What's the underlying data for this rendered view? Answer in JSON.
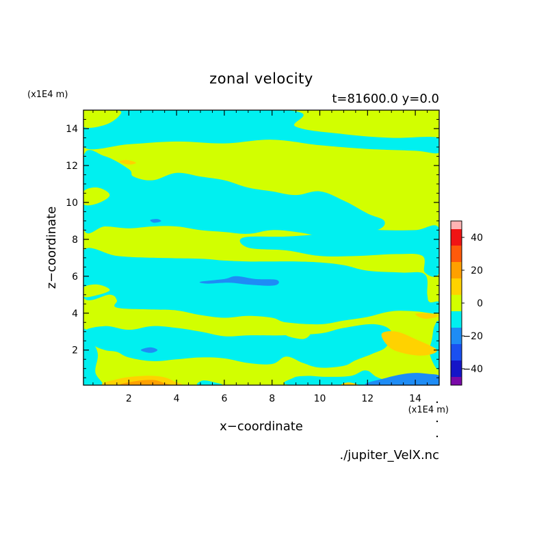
{
  "chart_data": {
    "type": "heatmap",
    "title": "zonal velocity",
    "subtitle": "t=81600.0 y=0.0",
    "xlabel": "x−coordinate",
    "ylabel": "z−coordinate",
    "x_unit": "(x1E4 m)",
    "y_unit": "(x1E4 m)",
    "footer": "./jupiter_VelX.nc",
    "xlim": [
      0.1,
      15
    ],
    "ylim": [
      0.1,
      15
    ],
    "x_ticks": [
      2,
      4,
      6,
      8,
      10,
      12,
      14
    ],
    "y_ticks": [
      2,
      4,
      6,
      8,
      10,
      12,
      14
    ],
    "x_tick_labels": [
      "2",
      "4",
      "6",
      "8",
      "10",
      "12",
      "14"
    ],
    "y_tick_labels": [
      "2",
      "4",
      "6",
      "8",
      "10",
      "12",
      "14"
    ],
    "grid": false,
    "colorbar": {
      "placement": "right",
      "levels": [
        -50,
        -40,
        -30,
        -20,
        -10,
        0,
        10,
        20,
        30,
        40,
        50
      ],
      "colors": [
        "#7a0aa8",
        "#1515c8",
        "#1a50f0",
        "#1e8cf5",
        "#00f0f0",
        "#d2ff00",
        "#ffd200",
        "#ffa000",
        "#ff5a0a",
        "#f01414",
        "#ffb4b4"
      ],
      "tick_values": [
        -40,
        -20,
        0,
        20,
        40
      ],
      "tick_labels": [
        "−40",
        "−20",
        "0",
        "20",
        "40"
      ]
    },
    "background_level": 0,
    "regions": [
      {
        "level": -10,
        "points": [
          [
            0.1,
            13.0
          ],
          [
            2,
            13.15
          ],
          [
            4,
            13.3
          ],
          [
            6,
            13.2
          ],
          [
            8,
            13.4
          ],
          [
            10,
            13.1
          ],
          [
            12,
            12.9
          ],
          [
            14,
            12.8
          ],
          [
            15,
            12.7
          ],
          [
            15,
            13.5
          ],
          [
            13,
            13.5
          ],
          [
            11,
            13.7
          ],
          [
            9,
            14.1
          ],
          [
            8.6,
            15
          ],
          [
            0.1,
            15
          ]
        ]
      },
      {
        "level": 0,
        "points": [
          [
            0.1,
            15
          ],
          [
            0.1,
            14.1
          ],
          [
            1,
            14.2
          ],
          [
            1.6,
            14.7
          ],
          [
            1.5,
            15
          ]
        ]
      },
      {
        "level": -10,
        "points": [
          [
            0.1,
            12.5
          ],
          [
            1,
            12.5
          ],
          [
            2,
            11.8
          ],
          [
            2.2,
            11.4
          ],
          [
            3,
            11.2
          ],
          [
            4,
            11.6
          ],
          [
            5,
            11.4
          ],
          [
            6,
            11.2
          ],
          [
            7,
            10.8
          ],
          [
            8,
            10.6
          ],
          [
            9,
            10.4
          ],
          [
            10,
            10.6
          ],
          [
            11,
            10.1
          ],
          [
            12,
            9.4
          ],
          [
            12.7,
            9.0
          ],
          [
            12.4,
            8.5
          ],
          [
            11,
            8.2
          ],
          [
            10,
            8.2
          ],
          [
            9,
            8.4
          ],
          [
            8,
            8.5
          ],
          [
            7,
            8.3
          ],
          [
            6,
            8.4
          ],
          [
            5,
            8.5
          ],
          [
            4,
            8.7
          ],
          [
            3,
            8.7
          ],
          [
            2,
            8.6
          ],
          [
            1,
            8.7
          ],
          [
            0.1,
            8.6
          ]
        ]
      },
      {
        "level": 0,
        "points": [
          [
            1.6,
            7.6
          ],
          [
            3,
            7.9
          ],
          [
            5,
            7.9
          ],
          [
            6.4,
            7.6
          ],
          [
            5.2,
            7.25
          ],
          [
            3,
            7.15
          ],
          [
            1.6,
            7.3
          ]
        ]
      },
      {
        "level": 0,
        "points": [
          [
            0.1,
            10.6
          ],
          [
            0.7,
            10.8
          ],
          [
            1.2,
            10.4
          ],
          [
            0.7,
            9.95
          ],
          [
            0.1,
            9.9
          ]
        ]
      },
      {
        "level": -10,
        "points": [
          [
            11.2,
            8.6
          ],
          [
            12.6,
            8.5
          ],
          [
            14,
            8.5
          ],
          [
            15,
            8.6
          ],
          [
            15,
            6.2
          ],
          [
            14.4,
            6.2
          ],
          [
            14.3,
            7.1
          ],
          [
            13.2,
            7.2
          ],
          [
            11.6,
            7.1
          ],
          [
            10,
            7.1
          ],
          [
            8.6,
            7.4
          ],
          [
            7,
            7.55
          ],
          [
            6.8,
            8.1
          ],
          [
            8.6,
            8.15
          ],
          [
            10,
            8.3
          ]
        ]
      },
      {
        "level": -10,
        "points": [
          [
            0.1,
            7.4
          ],
          [
            1.5,
            7.1
          ],
          [
            3,
            7.0
          ],
          [
            5,
            6.95
          ],
          [
            6,
            6.85
          ],
          [
            7,
            6.8
          ],
          [
            8,
            6.8
          ],
          [
            9,
            6.8
          ],
          [
            10,
            6.75
          ],
          [
            11,
            6.6
          ],
          [
            12,
            6.3
          ],
          [
            13.4,
            6.2
          ],
          [
            14.4,
            6.1
          ],
          [
            14.5,
            5.0
          ],
          [
            14.6,
            4.6
          ],
          [
            15,
            4.6
          ],
          [
            15,
            4.0
          ],
          [
            14,
            4.1
          ],
          [
            13,
            4.1
          ],
          [
            12,
            3.8
          ],
          [
            11,
            3.6
          ],
          [
            10,
            3.4
          ],
          [
            8.6,
            3.5
          ],
          [
            8,
            3.75
          ],
          [
            7,
            3.85
          ],
          [
            6,
            3.75
          ],
          [
            5,
            3.9
          ],
          [
            4,
            4.15
          ],
          [
            3,
            4.2
          ],
          [
            1.5,
            4.3
          ],
          [
            1.5,
            4.7
          ],
          [
            1.2,
            5.0
          ],
          [
            0.1,
            4.85
          ]
        ]
      },
      {
        "level": 0,
        "points": [
          [
            0.1,
            5.4
          ],
          [
            0.7,
            5.55
          ],
          [
            1.2,
            5.25
          ],
          [
            0.6,
            4.95
          ],
          [
            0.1,
            4.9
          ]
        ]
      },
      {
        "level": -10,
        "points": [
          [
            0.1,
            3.0
          ],
          [
            0.5,
            2.3
          ],
          [
            1,
            2.0
          ],
          [
            1.5,
            1.9
          ],
          [
            2,
            1.6
          ],
          [
            3,
            1.4
          ],
          [
            4,
            1.5
          ],
          [
            5,
            1.6
          ],
          [
            6,
            1.55
          ],
          [
            7,
            1.3
          ],
          [
            8,
            1.25
          ],
          [
            8.6,
            1.65
          ],
          [
            9.3,
            1.3
          ],
          [
            10,
            1.05
          ],
          [
            11,
            1.15
          ],
          [
            11.5,
            1.45
          ],
          [
            12.2,
            1.8
          ],
          [
            12.8,
            2.2
          ],
          [
            13,
            3.0
          ],
          [
            12.3,
            3.4
          ],
          [
            11,
            3.2
          ],
          [
            10,
            2.9
          ],
          [
            8.4,
            2.8
          ],
          [
            7,
            2.8
          ],
          [
            6,
            2.75
          ],
          [
            5,
            3.0
          ],
          [
            4,
            3.2
          ],
          [
            3,
            3.3
          ],
          [
            2,
            3.1
          ],
          [
            1,
            3.3
          ]
        ]
      },
      {
        "level": -10,
        "points": [
          [
            0.1,
            0.1
          ],
          [
            0.1,
            3.0
          ],
          [
            0.4,
            2.6
          ],
          [
            0.7,
            1.8
          ],
          [
            0.6,
            0.8
          ],
          [
            0.9,
            0.1
          ]
        ]
      },
      {
        "level": -10,
        "points": [
          [
            8.8,
            0.1
          ],
          [
            8.9,
            0.5
          ],
          [
            9.5,
            0.6
          ],
          [
            10.3,
            0.55
          ],
          [
            11.3,
            0.6
          ],
          [
            11.9,
            0.9
          ],
          [
            12.3,
            0.6
          ],
          [
            12.7,
            0.1
          ]
        ]
      },
      {
        "level": -10,
        "points": [
          [
            14.8,
            3.3
          ],
          [
            15,
            3.4
          ],
          [
            15,
            1.0
          ],
          [
            14.6,
            1.8
          ],
          [
            14.7,
            2.6
          ]
        ]
      },
      {
        "level": -10,
        "points": [
          [
            4.9,
            0.1
          ],
          [
            5.1,
            0.35
          ],
          [
            5.6,
            0.25
          ],
          [
            5.9,
            0.1
          ]
        ]
      },
      {
        "level": -20,
        "points": [
          [
            5.0,
            5.7
          ],
          [
            6.0,
            5.85
          ],
          [
            6.5,
            6.0
          ],
          [
            7.3,
            5.85
          ],
          [
            8.2,
            5.8
          ],
          [
            8.1,
            5.5
          ],
          [
            7.0,
            5.55
          ],
          [
            6.2,
            5.65
          ],
          [
            5.3,
            5.6
          ]
        ]
      },
      {
        "level": -20,
        "points": [
          [
            2.5,
            2.0
          ],
          [
            2.9,
            2.15
          ],
          [
            3.2,
            2.0
          ],
          [
            2.9,
            1.85
          ]
        ]
      },
      {
        "level": -20,
        "points": [
          [
            2.9,
            9.05
          ],
          [
            3.2,
            9.1
          ],
          [
            3.35,
            8.98
          ],
          [
            3.05,
            8.9
          ]
        ]
      },
      {
        "level": -20,
        "points": [
          [
            12.0,
            0.1
          ],
          [
            12.8,
            0.5
          ],
          [
            13.8,
            0.75
          ],
          [
            14.6,
            0.7
          ],
          [
            15,
            0.6
          ],
          [
            15,
            0.1
          ]
        ]
      },
      {
        "level": 10,
        "points": [
          [
            1.0,
            0.1
          ],
          [
            1.6,
            0.45
          ],
          [
            2.6,
            0.6
          ],
          [
            3.4,
            0.55
          ],
          [
            3.9,
            0.3
          ],
          [
            4.0,
            0.1
          ]
        ]
      },
      {
        "level": 10,
        "points": [
          [
            10.9,
            0.1
          ],
          [
            11.2,
            0.25
          ],
          [
            11.6,
            0.1
          ]
        ]
      },
      {
        "level": 10,
        "points": [
          [
            12.6,
            2.9
          ],
          [
            13.2,
            3.0
          ],
          [
            14.0,
            2.6
          ],
          [
            14.9,
            2.0
          ],
          [
            14.3,
            1.7
          ],
          [
            13.3,
            1.9
          ],
          [
            12.8,
            2.3
          ]
        ]
      },
      {
        "level": 10,
        "points": [
          [
            14.0,
            3.95
          ],
          [
            14.5,
            4.0
          ],
          [
            15.0,
            3.85
          ],
          [
            14.4,
            3.7
          ]
        ]
      },
      {
        "level": 10,
        "points": [
          [
            1.6,
            12.2
          ],
          [
            1.9,
            12.3
          ],
          [
            2.3,
            12.15
          ],
          [
            2.0,
            12.05
          ]
        ]
      },
      {
        "level": 20,
        "points": [
          [
            1.7,
            0.1
          ],
          [
            2.2,
            0.3
          ],
          [
            3.0,
            0.38
          ],
          [
            3.5,
            0.2
          ],
          [
            3.6,
            0.1
          ]
        ]
      },
      {
        "level": 0,
        "points": [
          [
            8.6,
            2.8
          ],
          [
            9.2,
            2.95
          ],
          [
            9.6,
            2.9
          ],
          [
            9.3,
            2.6
          ]
        ]
      },
      {
        "level": 0,
        "points": [
          [
            14.3,
            10.3
          ],
          [
            14.7,
            10.45
          ],
          [
            15,
            10.3
          ],
          [
            14.6,
            10.15
          ]
        ]
      }
    ]
  }
}
